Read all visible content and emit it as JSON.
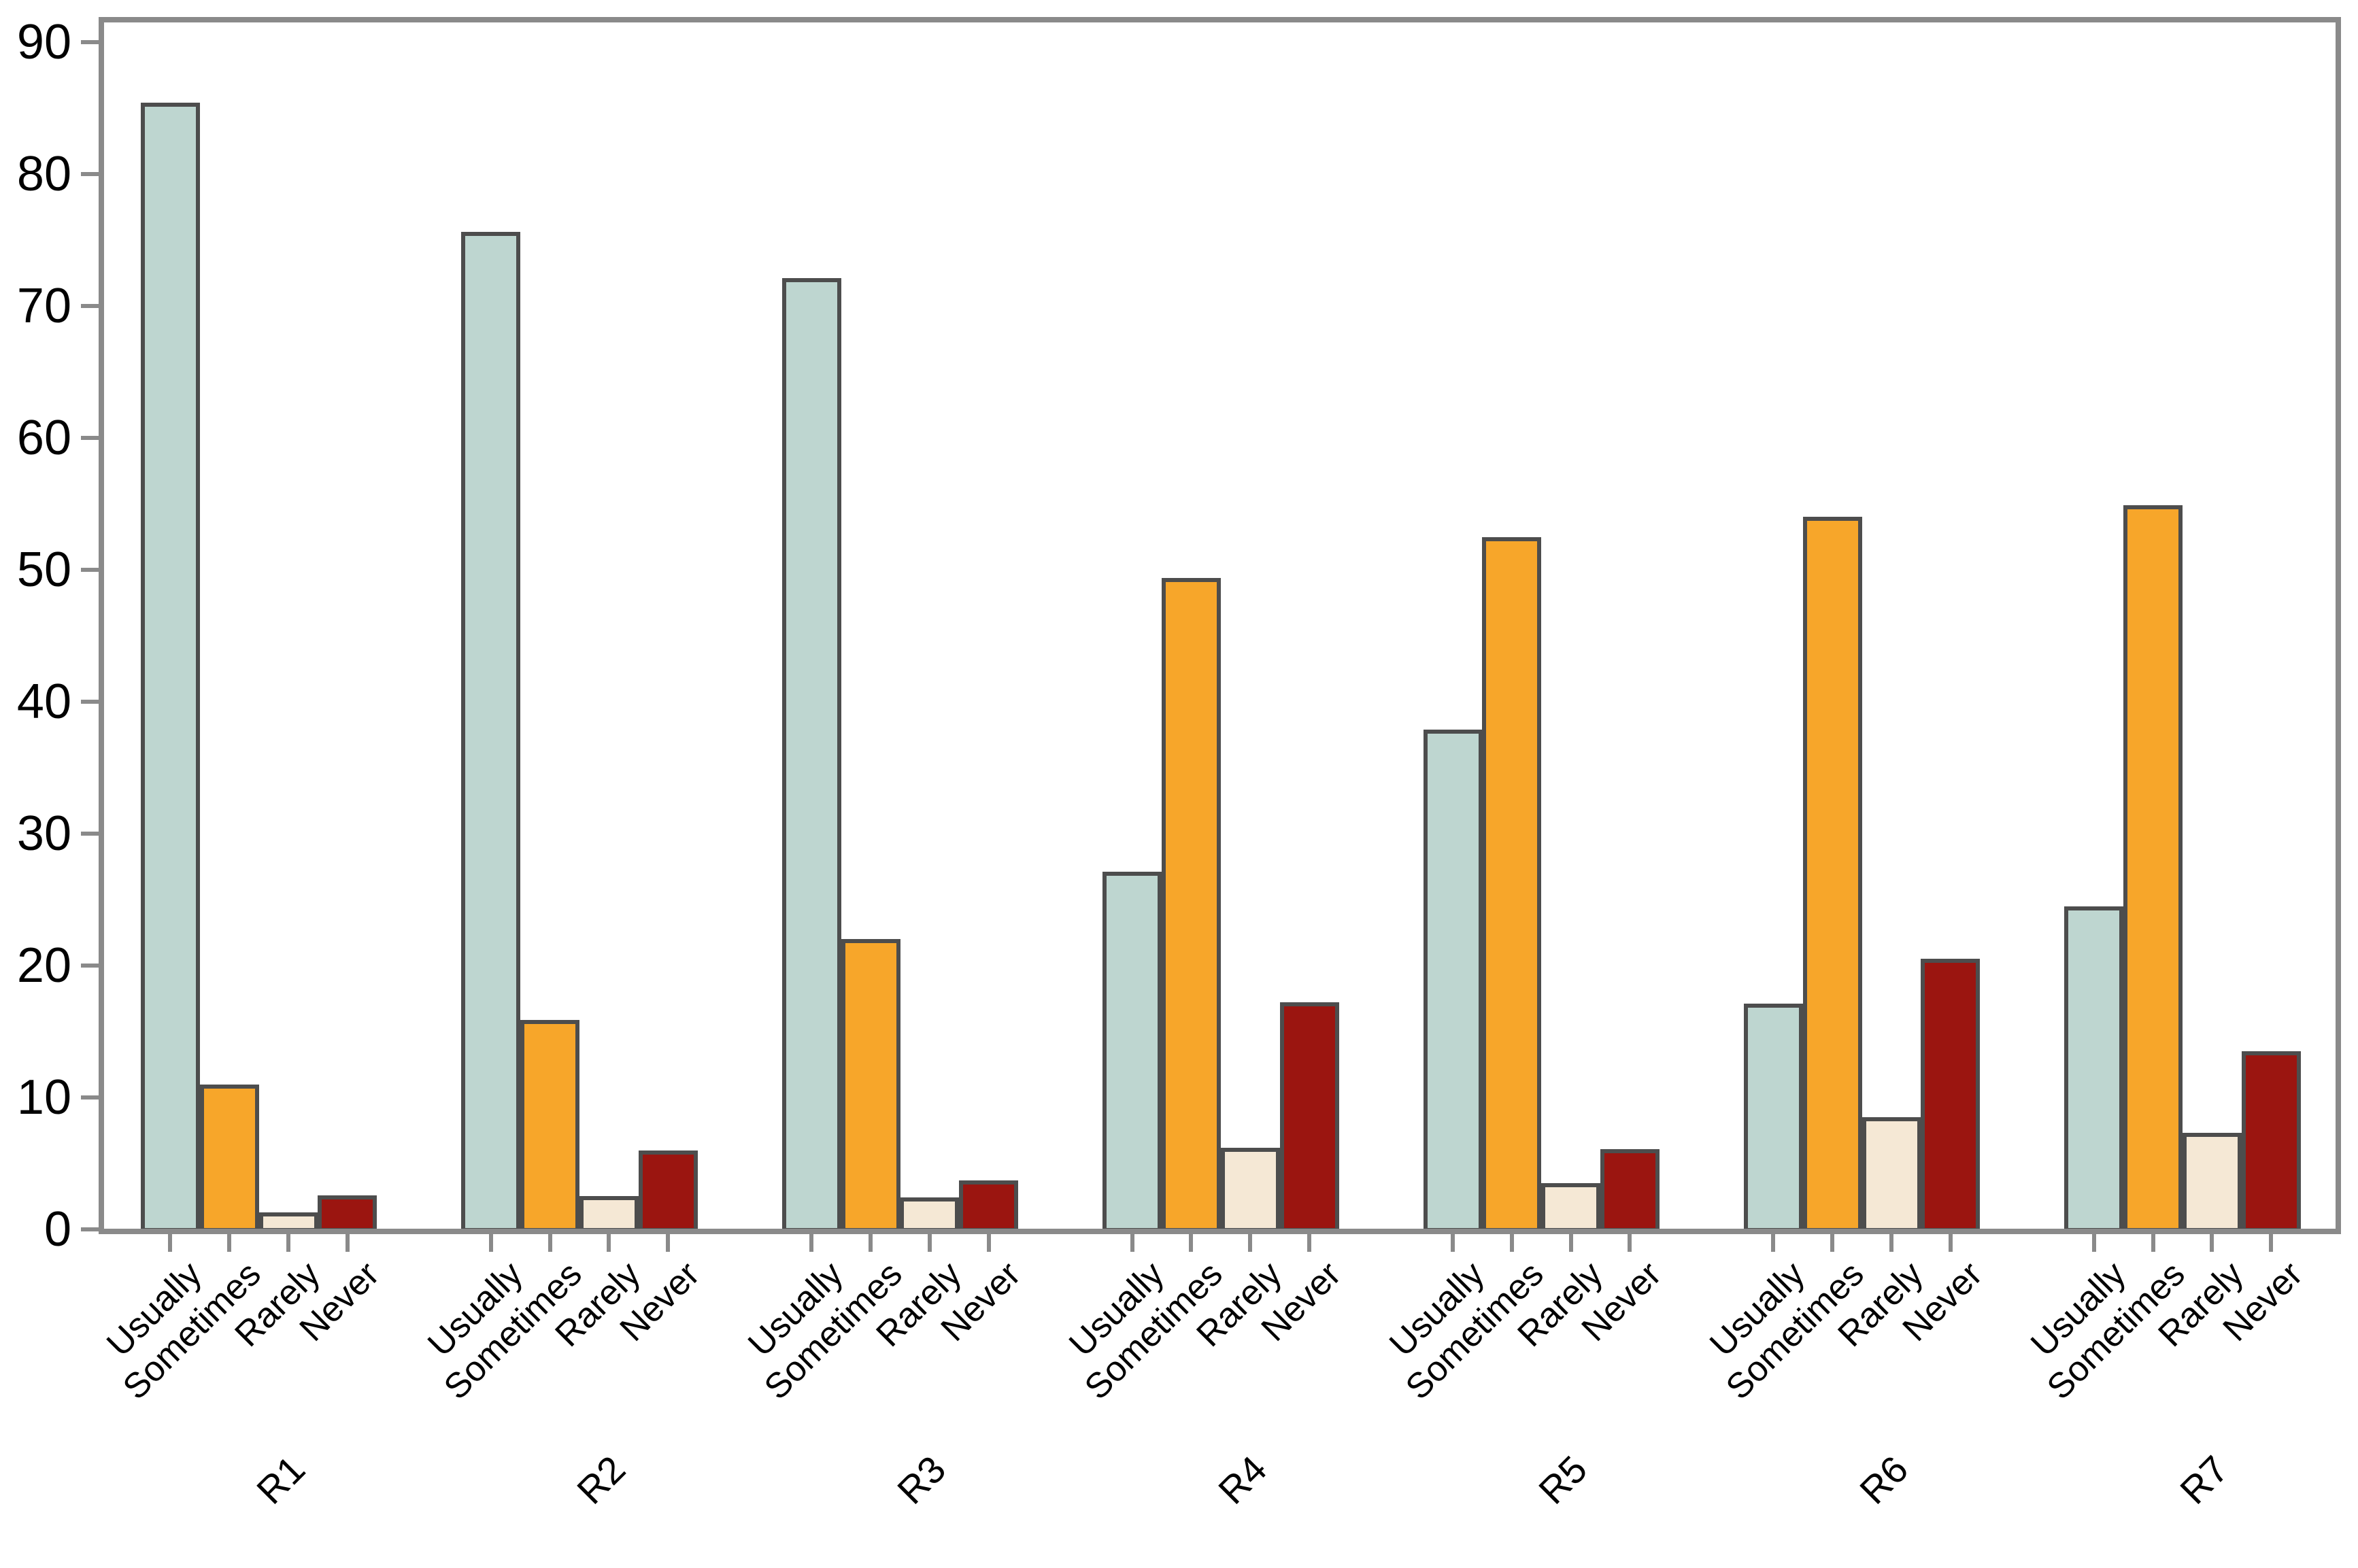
{
  "chart_data": {
    "type": "bar",
    "title": "",
    "xlabel": "",
    "ylabel": "",
    "groups": [
      "R1",
      "R2",
      "R3",
      "R4",
      "R5",
      "R6",
      "R7"
    ],
    "bar_categories": [
      "Usually",
      "Sometimes",
      "Rarely",
      "Never"
    ],
    "series": [
      {
        "name": "Usually",
        "color": "#BED6D0",
        "values": [
          85.4,
          75.6,
          72.1,
          27.1,
          37.9,
          17.1,
          24.5
        ]
      },
      {
        "name": "Sometimes",
        "color": "#F7A62A",
        "values": [
          11.0,
          15.9,
          22.0,
          49.4,
          52.5,
          54.0,
          54.9
        ]
      },
      {
        "name": "Rarely",
        "color": "#F5E8D5",
        "values": [
          1.3,
          2.5,
          2.4,
          6.2,
          3.5,
          8.5,
          7.3
        ]
      },
      {
        "name": "Never",
        "color": "#9B1510",
        "values": [
          2.6,
          6.0,
          3.7,
          17.2,
          6.1,
          20.5,
          13.5
        ]
      }
    ],
    "yticks": [
      0,
      10,
      20,
      30,
      40,
      50,
      60,
      70,
      80,
      90
    ],
    "ylim": [
      0,
      91.5
    ],
    "grid": false,
    "legend": false,
    "axis_color": "#8A8A8A",
    "bar_edge_color": "#4D4D4D",
    "tick_label_color": "#000000",
    "background": "#FFFFFF"
  }
}
